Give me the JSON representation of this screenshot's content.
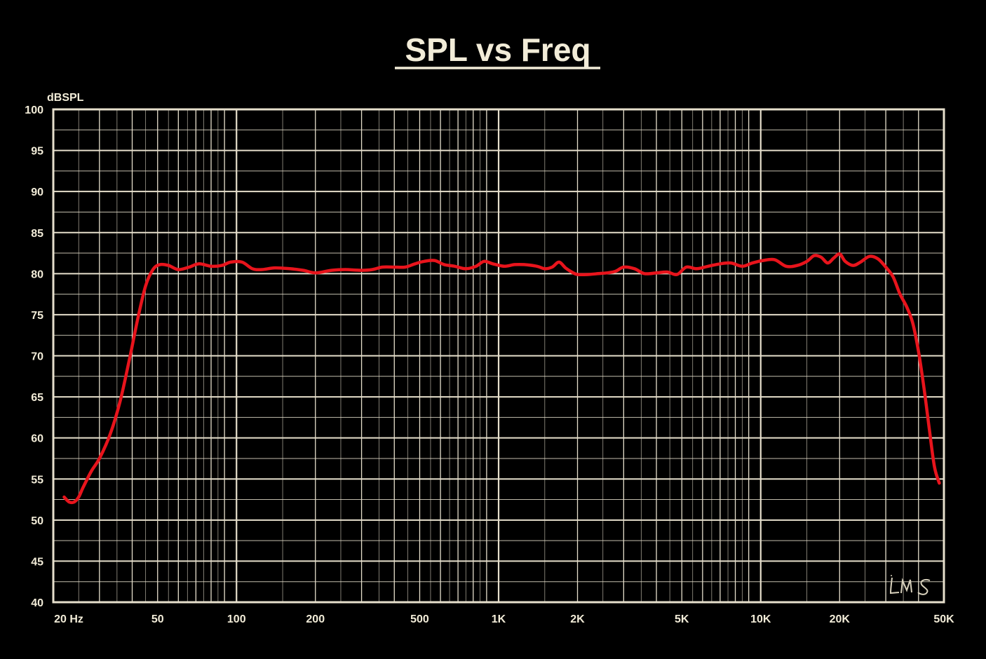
{
  "chart_data": {
    "type": "line",
    "title": "SPL vs Freq",
    "ylabel": "dBSPL",
    "xlabel": "",
    "x_scale": "log",
    "xlim": [
      20,
      50000
    ],
    "ylim": [
      40,
      100
    ],
    "grid": true,
    "x_tick_values": [
      20,
      50,
      100,
      200,
      500,
      1000,
      2000,
      5000,
      10000,
      20000,
      50000
    ],
    "x_tick_labels": [
      "20  Hz",
      "50",
      "100",
      "200",
      "500",
      "1K",
      "2K",
      "5K",
      "10K",
      "20K",
      "50K"
    ],
    "y_tick_values": [
      100,
      95,
      90,
      85,
      80,
      75,
      70,
      65,
      60,
      55,
      50,
      45,
      40
    ],
    "y_tick_labels": [
      "100",
      "95",
      "90",
      "85",
      "80",
      "75",
      "70",
      "65",
      "60",
      "55",
      "50",
      "45",
      "40"
    ],
    "colors": {
      "background": "#000000",
      "grid": "#e6dfcc",
      "text": "#f2ecd8",
      "series": "#e8141c"
    },
    "logo_text": "LMS",
    "series": [
      {
        "x": [
          22,
          23,
          24,
          25,
          26,
          28,
          30,
          33,
          36,
          39,
          42,
          45,
          48,
          51,
          55,
          60,
          66,
          72,
          80,
          88,
          95,
          105,
          115,
          125,
          140,
          160,
          180,
          200,
          230,
          260,
          300,
          330,
          360,
          400,
          440,
          480,
          520,
          570,
          620,
          680,
          750,
          820,
          880,
          950,
          1050,
          1150,
          1250,
          1400,
          1500,
          1600,
          1700,
          1800,
          1900,
          2000,
          2200,
          2400,
          2600,
          2800,
          3000,
          3300,
          3600,
          4000,
          4400,
          4800,
          5200,
          5700,
          6300,
          7000,
          7700,
          8500,
          9300,
          10200,
          11300,
          12500,
          13800,
          15000,
          16000,
          17000,
          18000,
          19000,
          20000,
          21000,
          22500,
          24000,
          26000,
          28000,
          30000,
          32000,
          34000,
          36000,
          38000,
          40000,
          42000,
          44000,
          46000,
          48000
        ],
        "y": [
          52.8,
          52.2,
          52.2,
          52.8,
          54.0,
          56.0,
          57.5,
          60.5,
          64.5,
          69.5,
          74.5,
          78.5,
          80.5,
          81.1,
          81.0,
          80.5,
          80.8,
          81.2,
          80.9,
          81.0,
          81.4,
          81.4,
          80.6,
          80.5,
          80.7,
          80.6,
          80.4,
          80.1,
          80.4,
          80.5,
          80.4,
          80.5,
          80.8,
          80.8,
          80.8,
          81.2,
          81.5,
          81.6,
          81.1,
          80.9,
          80.6,
          80.9,
          81.5,
          81.2,
          80.9,
          81.1,
          81.1,
          80.9,
          80.6,
          80.8,
          81.4,
          80.7,
          80.2,
          79.9,
          79.9,
          80.0,
          80.1,
          80.3,
          80.8,
          80.6,
          80.0,
          80.1,
          80.2,
          79.9,
          80.8,
          80.6,
          80.9,
          81.2,
          81.3,
          80.9,
          81.3,
          81.6,
          81.7,
          80.9,
          81.0,
          81.5,
          82.2,
          82.0,
          81.3,
          81.9,
          82.4,
          81.5,
          81.0,
          81.4,
          82.1,
          81.8,
          80.8,
          79.6,
          77.5,
          76.0,
          74.0,
          70.5,
          66.0,
          61.0,
          56.5,
          54.5
        ]
      }
    ]
  }
}
